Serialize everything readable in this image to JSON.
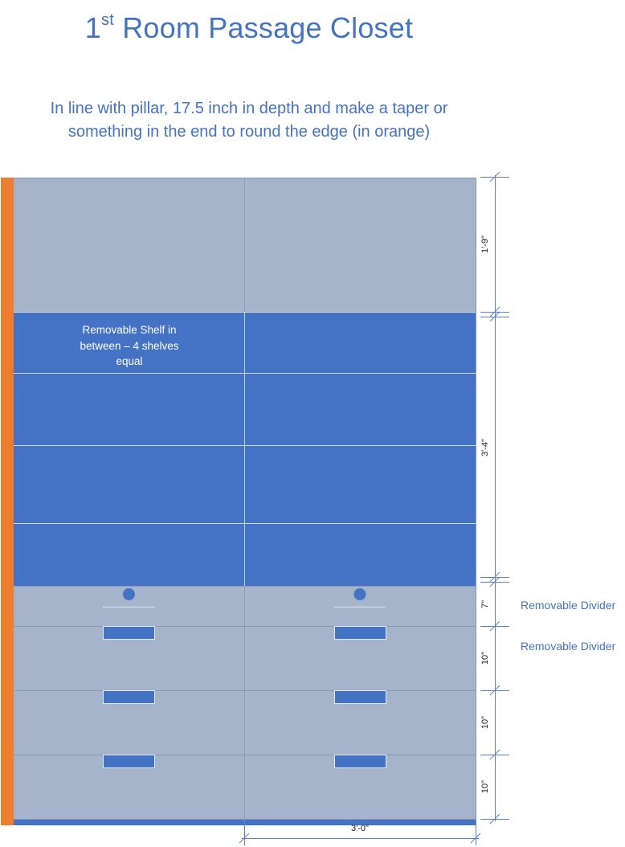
{
  "title": {
    "main": "Room Passage Closet",
    "ordinal_num": "1",
    "ordinal_sup": "st"
  },
  "subtitle": {
    "line1": "In line with pillar, 17.5 inch in depth and make a taper or",
    "line2": "something in the end to round the edge (in orange)"
  },
  "shelf_label": {
    "line1": "Removable Shelf in",
    "line2": "between – 4 shelves",
    "line3": "equal"
  },
  "dimensions": {
    "top_section": "1'-9\"",
    "middle_section": "3'-4\"",
    "drawer_1": "7\"",
    "drawer_2": "10\"",
    "drawer_3": "10\"",
    "drawer_4": "10\"",
    "width": "3'-0\""
  },
  "notes": {
    "divider_1": "Removable Divider",
    "divider_2": "Removable Divider"
  },
  "colors": {
    "frame_gray": "#a5b4cb",
    "shelf_blue": "#4472c4",
    "edge_orange": "#ed7d31",
    "dimension_line": "#5b7fc6",
    "divider_line": "#d0d7e3"
  }
}
